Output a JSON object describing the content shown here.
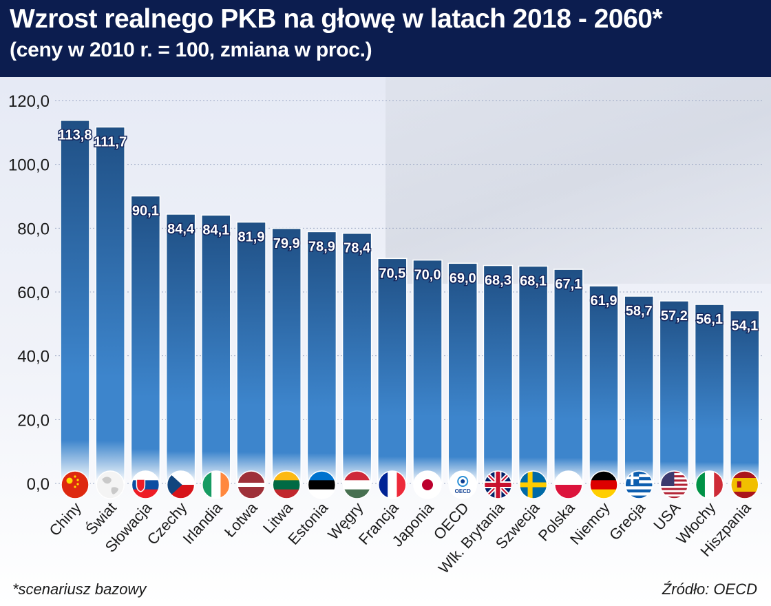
{
  "header": {
    "title": "Wzrost realnego PKB na głowę w latach 2018 - 2060*",
    "subtitle": "(ceny w 2010 r. = 100,  zmiana w proc.)"
  },
  "footer": {
    "note": "*scenariusz bazowy",
    "source": "Źródło: OECD"
  },
  "colors": {
    "header_bg": "#0c1d4f",
    "bar_top": "#1f4f84",
    "bar_mid": "#3d85cc",
    "bar_bottom": "#ffffff",
    "label_text": "#ffffff",
    "label_outline": "#13245a"
  },
  "chart_data": {
    "type": "bar",
    "ylim": [
      0,
      120
    ],
    "yticks": [
      "0,0",
      "20,0",
      "40,0",
      "60,0",
      "80,0",
      "100,0",
      "120,0"
    ],
    "grid": true,
    "categories": [
      "Chiny",
      "Świat",
      "Słowacja",
      "Czechy",
      "Irlandia",
      "Łotwa",
      "Litwa",
      "Estonia",
      "Węgry",
      "Francja",
      "Japonia",
      "OECD",
      "Wlk. Brytania",
      "Szwecja",
      "Polska",
      "Niemcy",
      "Grecja",
      "USA",
      "Włochy",
      "Hiszpania"
    ],
    "values": [
      113.8,
      111.7,
      90.1,
      84.4,
      84.1,
      81.9,
      79.9,
      78.9,
      78.4,
      70.5,
      70.0,
      69.0,
      68.3,
      68.1,
      67.1,
      61.9,
      58.7,
      57.2,
      56.1,
      54.1
    ],
    "value_labels": [
      "113,8",
      "111,7",
      "90,1",
      "84,4",
      "84,1",
      "81,9",
      "79,9",
      "78,9",
      "78,4",
      "70,5",
      "70,0",
      "69,0",
      "68,3",
      "68,1",
      "67,1",
      "61,9",
      "58,7",
      "57,2",
      "56,1",
      "54,1"
    ],
    "flags": [
      "flag-china",
      "flag-world",
      "flag-slovakia",
      "flag-czechia",
      "flag-ireland",
      "flag-latvia",
      "flag-lithuania",
      "flag-estonia",
      "flag-hungary",
      "flag-france",
      "flag-japan",
      "flag-oecd",
      "flag-uk",
      "flag-sweden",
      "flag-poland",
      "flag-germany",
      "flag-greece",
      "flag-usa",
      "flag-italy",
      "flag-spain"
    ],
    "oecd_badge": "OECD"
  }
}
